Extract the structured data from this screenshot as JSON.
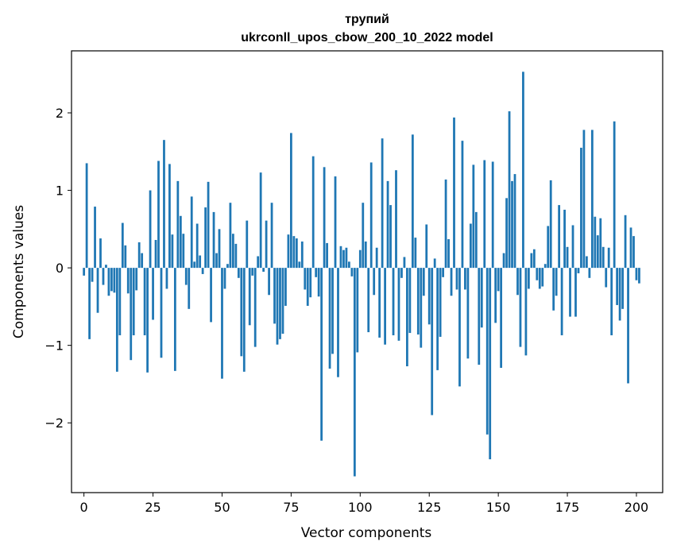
{
  "chart_data": {
    "type": "bar",
    "title_line1": "трупий",
    "title_line2": "ukrconll_upos_cbow_200_10_2022 model",
    "xlabel": "Vector components",
    "ylabel": "Components values",
    "xlim": [
      -4.5,
      209.5
    ],
    "ylim": [
      -2.9,
      2.8
    ],
    "xticks": [
      0,
      25,
      50,
      75,
      100,
      125,
      150,
      175,
      200
    ],
    "yticks": [
      2,
      1,
      0,
      -1,
      -2
    ],
    "ytick_labels": [
      "2",
      "1",
      "0",
      "−1",
      "−2"
    ],
    "bar_color": "#1f77b4",
    "values": [
      -0.1,
      1.35,
      -0.92,
      -0.18,
      0.79,
      -0.58,
      0.38,
      -0.22,
      0.04,
      -0.36,
      -0.3,
      -0.32,
      -1.34,
      -0.87,
      0.58,
      0.29,
      -0.33,
      -1.19,
      -0.87,
      -0.29,
      0.33,
      0.19,
      -0.87,
      -1.35,
      1.0,
      -0.67,
      0.36,
      1.38,
      -1.16,
      1.65,
      -0.27,
      1.34,
      0.43,
      -1.33,
      1.12,
      0.67,
      0.44,
      -0.22,
      -0.53,
      0.92,
      0.08,
      0.57,
      0.16,
      -0.08,
      0.78,
      1.11,
      -0.7,
      0.72,
      0.19,
      0.5,
      -1.43,
      -0.27,
      0.05,
      0.84,
      0.44,
      0.31,
      -0.13,
      -1.14,
      -1.34,
      0.61,
      -0.74,
      -0.1,
      -1.02,
      0.15,
      1.23,
      -0.05,
      0.61,
      -0.35,
      0.84,
      -0.72,
      -0.99,
      -0.92,
      -0.85,
      -0.49,
      0.43,
      1.74,
      0.41,
      0.38,
      0.08,
      0.34,
      -0.28,
      -0.49,
      -0.38,
      1.44,
      -0.12,
      -0.37,
      -2.23,
      1.3,
      0.32,
      -1.3,
      -1.11,
      1.18,
      -1.41,
      0.28,
      0.23,
      0.26,
      0.08,
      -0.11,
      -2.69,
      -1.09,
      0.23,
      0.84,
      0.34,
      -0.83,
      1.36,
      -0.35,
      0.26,
      -0.9,
      1.67,
      -0.99,
      1.12,
      0.81,
      -0.87,
      1.26,
      -0.94,
      -0.13,
      0.14,
      -1.27,
      -0.84,
      1.72,
      0.39,
      -0.86,
      -1.03,
      -0.36,
      0.56,
      -0.73,
      -1.9,
      0.12,
      -1.32,
      -0.89,
      -0.12,
      1.14,
      0.37,
      -0.36,
      1.94,
      -0.28,
      -1.53,
      1.64,
      -0.28,
      -1.17,
      0.57,
      1.33,
      0.72,
      -1.25,
      -0.77,
      1.39,
      -2.15,
      -2.47,
      1.37,
      -0.71,
      -0.3,
      -1.29,
      0.19,
      0.9,
      2.02,
      1.12,
      1.21,
      -0.35,
      -1.02,
      2.53,
      -1.13,
      -0.27,
      0.19,
      0.24,
      -0.16,
      -0.27,
      -0.24,
      0.05,
      0.54,
      1.13,
      -0.55,
      -0.36,
      0.81,
      -0.87,
      0.75,
      0.27,
      -0.63,
      0.55,
      -0.63,
      -0.07,
      1.55,
      1.78,
      0.15,
      -0.13,
      1.78,
      0.66,
      0.42,
      0.64,
      0.27,
      -0.25,
      0.26,
      -0.87,
      1.89,
      -0.48,
      -0.68,
      -0.53,
      0.68,
      -1.49,
      0.52,
      0.41,
      -0.16,
      -0.2
    ]
  }
}
